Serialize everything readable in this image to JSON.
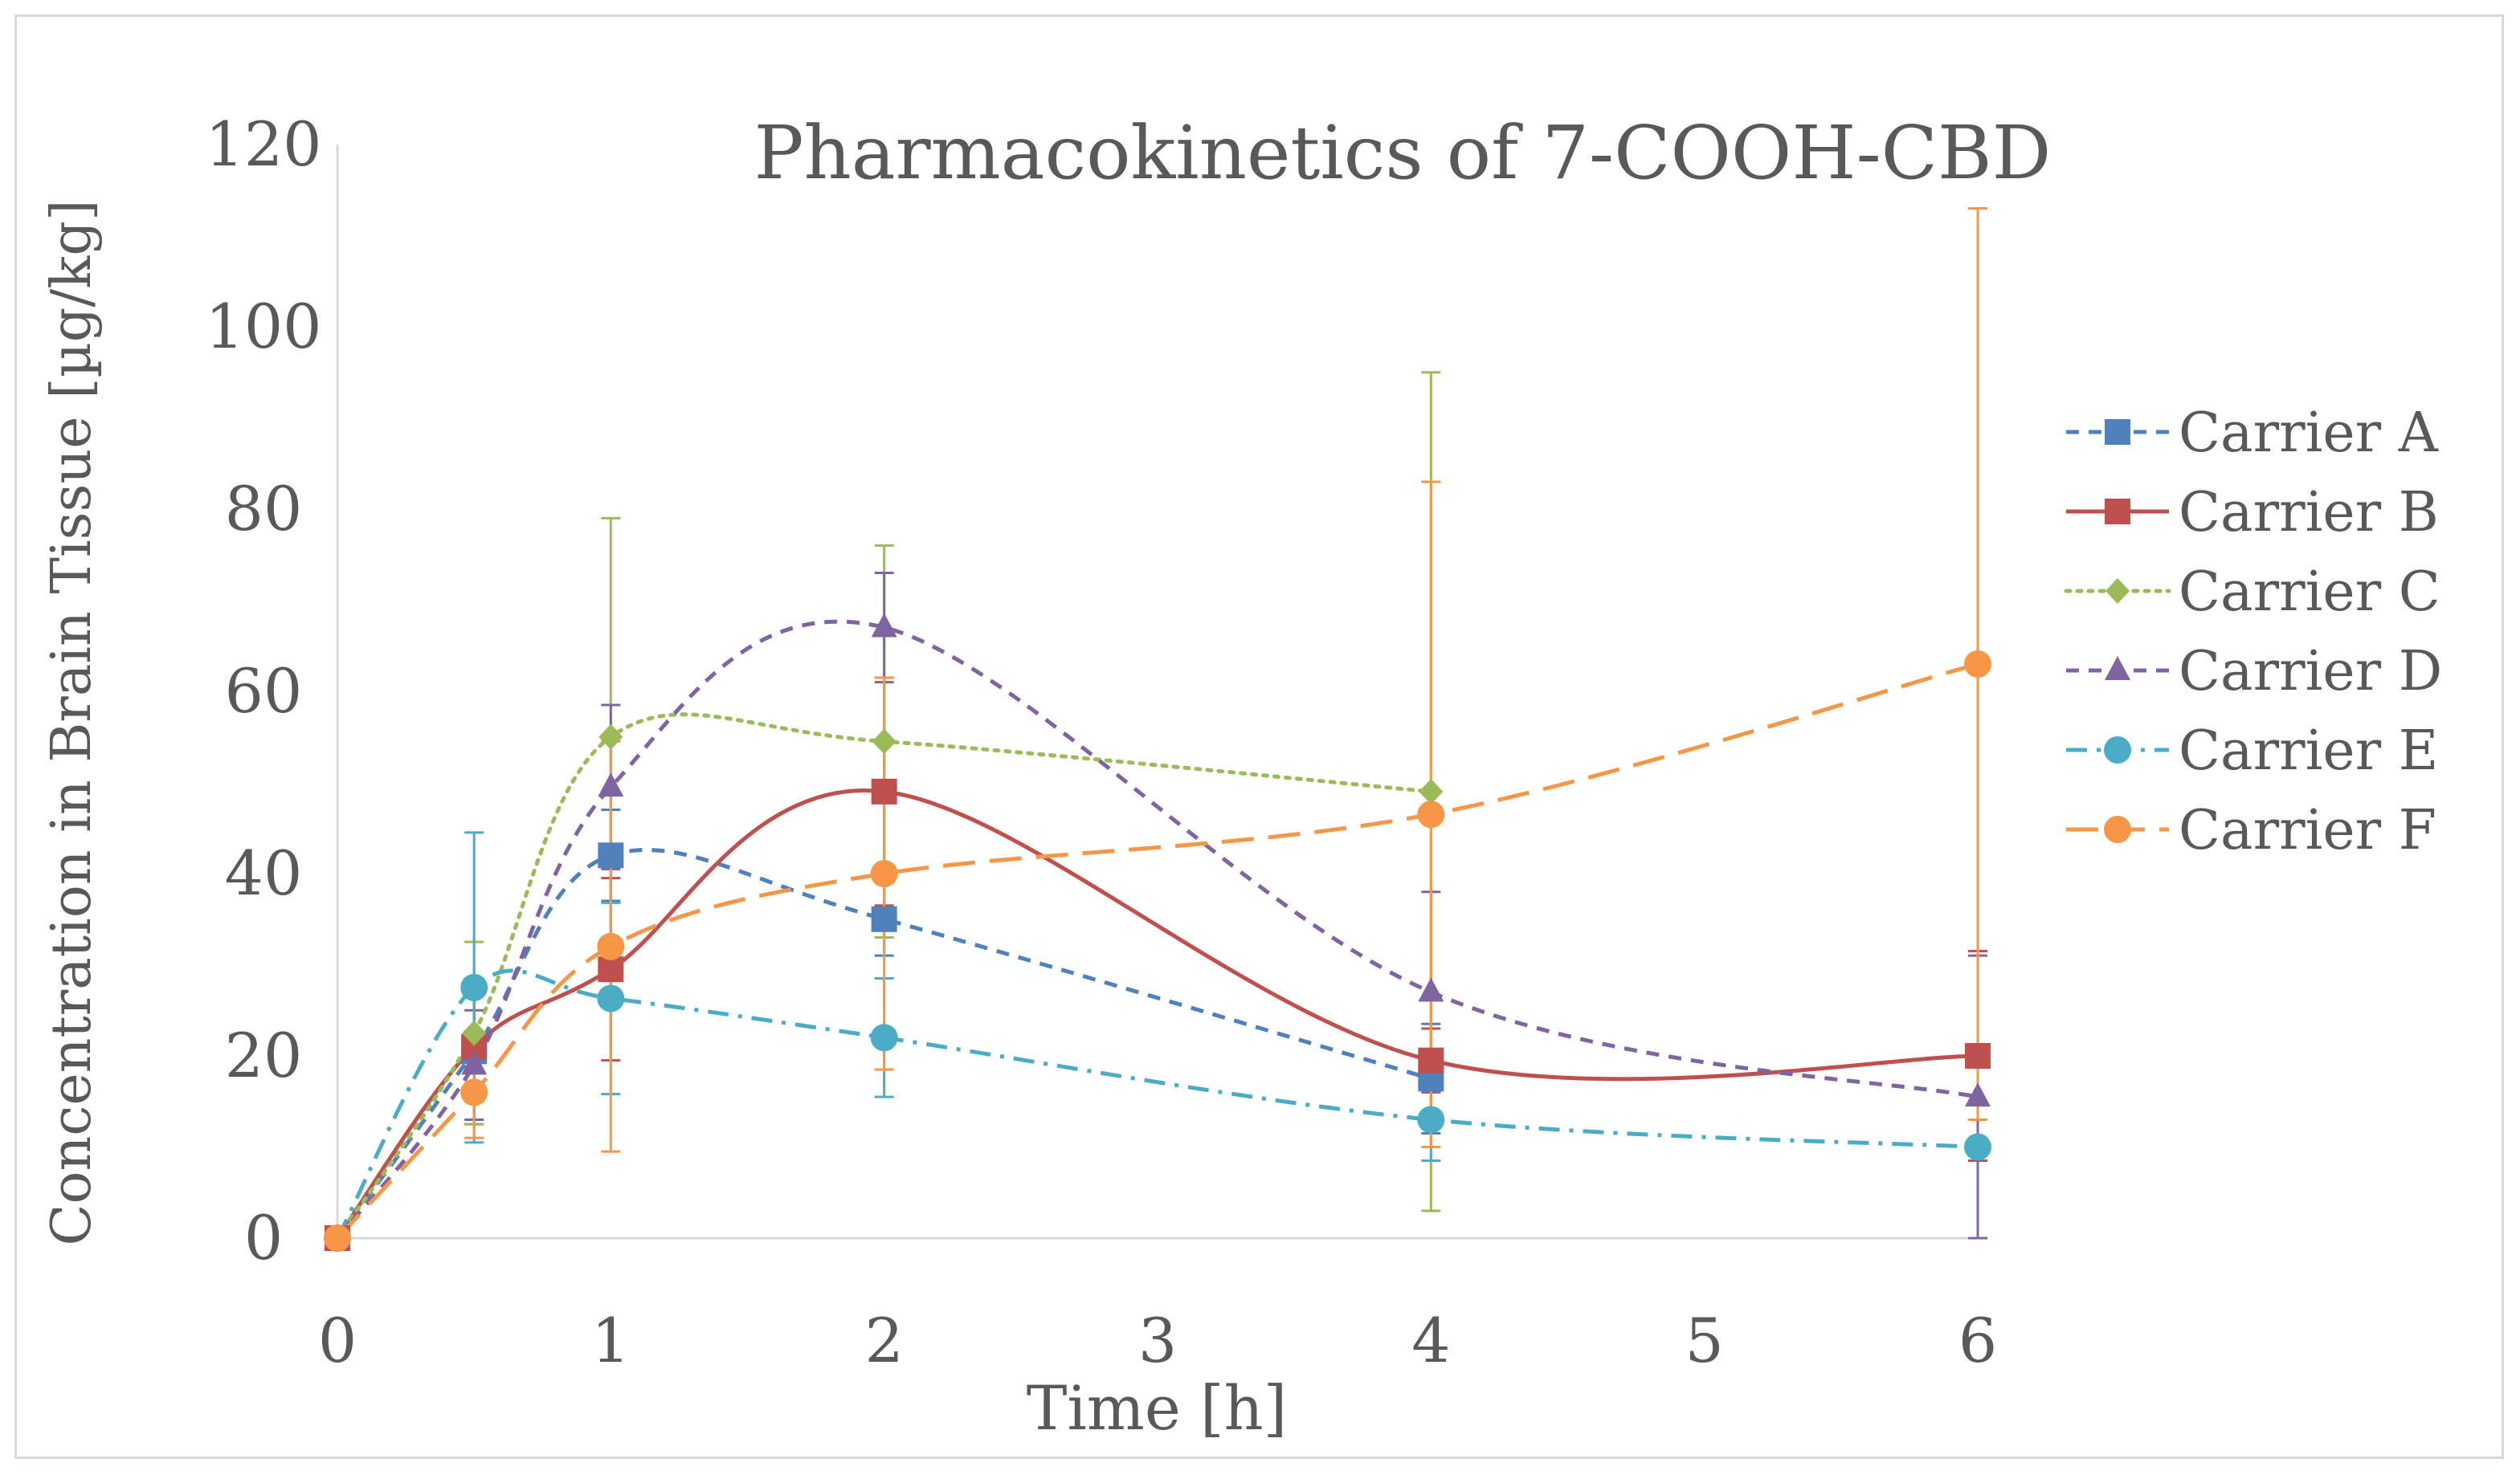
{
  "chart_data": {
    "type": "line",
    "title": "Pharmacokinetics of 7-COOH-CBD",
    "xlabel": "Time [h]",
    "ylabel": "Concentration  in Brain Tissue [µg/kg]",
    "xlim": [
      0,
      6
    ],
    "ylim": [
      0,
      120
    ],
    "x_ticks": [
      0,
      1,
      2,
      3,
      4,
      5,
      6
    ],
    "y_ticks": [
      0,
      20,
      40,
      60,
      80,
      100,
      120
    ],
    "x_tick_labels": [
      "0",
      "1",
      "2",
      "3",
      "4",
      "5",
      "6"
    ],
    "y_tick_labels": [
      "0",
      "20",
      "40",
      "60",
      "80",
      "100",
      "120"
    ],
    "legend_position": "right",
    "grid": false,
    "series": [
      {
        "name": "Carrier A",
        "color": "#4f81bd",
        "marker": "square",
        "dash": "dashed",
        "x": [
          0,
          0.5,
          1,
          2,
          4
        ],
        "y": [
          0,
          20.5,
          42,
          35,
          17.5
        ],
        "err": [
          0,
          8,
          5,
          4,
          6
        ]
      },
      {
        "name": "Carrier B",
        "color": "#c0504d",
        "marker": "square",
        "dash": "solid",
        "x": [
          0,
          0.5,
          1,
          2,
          4,
          6
        ],
        "y": [
          0,
          21,
          29.5,
          49,
          19.5,
          20
        ],
        "err": [
          0,
          6,
          10,
          12.5,
          3.5,
          11.5
        ]
      },
      {
        "name": "Carrier C",
        "color": "#9bbb59",
        "marker": "diamond",
        "dash": "dotted",
        "x": [
          0,
          0.5,
          1,
          2,
          4
        ],
        "y": [
          0,
          22.5,
          55,
          54.5,
          49
        ],
        "err": [
          0,
          10,
          24,
          21.5,
          46
        ]
      },
      {
        "name": "Carrier D",
        "color": "#8064a2",
        "marker": "triangle",
        "dash": "dashed",
        "x": [
          0,
          0.5,
          1,
          2,
          4,
          6
        ],
        "y": [
          0,
          19,
          49.5,
          67,
          27,
          15.5
        ],
        "err": [
          0,
          6,
          9,
          6,
          11,
          15.5
        ]
      },
      {
        "name": "Carrier E",
        "color": "#4bacc6",
        "marker": "circle",
        "dash": "dashdot",
        "x": [
          0,
          0.5,
          1,
          2,
          4,
          6
        ],
        "y": [
          0,
          27.5,
          26.3,
          22,
          13,
          10
        ],
        "err": [
          0,
          17,
          10.5,
          6.5,
          4.5,
          0
        ]
      },
      {
        "name": "Carrier F",
        "color": "#f79646",
        "marker": "circle",
        "dash": "longdash",
        "x": [
          0,
          0.5,
          1,
          2,
          4,
          6
        ],
        "y": [
          0,
          16,
          32,
          40,
          46.5,
          63
        ],
        "err": [
          0,
          5,
          22.5,
          21.5,
          36.5,
          50
        ]
      }
    ]
  }
}
